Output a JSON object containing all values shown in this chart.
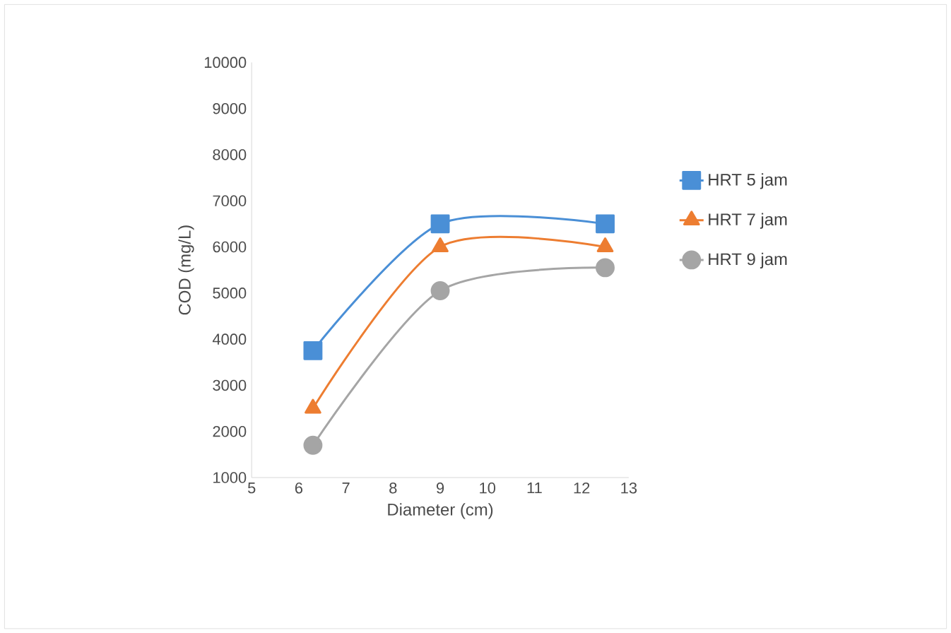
{
  "chart_data": {
    "type": "line",
    "xlabel": "Diameter (cm)",
    "ylabel": "COD (mg/L)",
    "x": [
      6.3,
      9,
      12.5
    ],
    "series": [
      {
        "name": "HRT 5 jam",
        "color": "#4a8fd6",
        "marker": "square",
        "values": [
          3750,
          6500,
          6500
        ]
      },
      {
        "name": "HRT 7 jam",
        "color": "#ed7d31",
        "marker": "triangle",
        "values": [
          2500,
          6000,
          6000
        ]
      },
      {
        "name": "HRT 9 jam",
        "color": "#a5a5a5",
        "marker": "circle",
        "values": [
          1700,
          5050,
          5550
        ]
      }
    ],
    "xlim": [
      5,
      13
    ],
    "xticks": [
      5,
      6,
      7,
      8,
      9,
      10,
      11,
      12,
      13
    ],
    "ylim": [
      1000,
      10000
    ],
    "yticks": [
      1000,
      2000,
      3000,
      4000,
      5000,
      6000,
      7000,
      8000,
      9000,
      10000
    ],
    "grid": false,
    "legend": "right",
    "line_style": "solid"
  }
}
